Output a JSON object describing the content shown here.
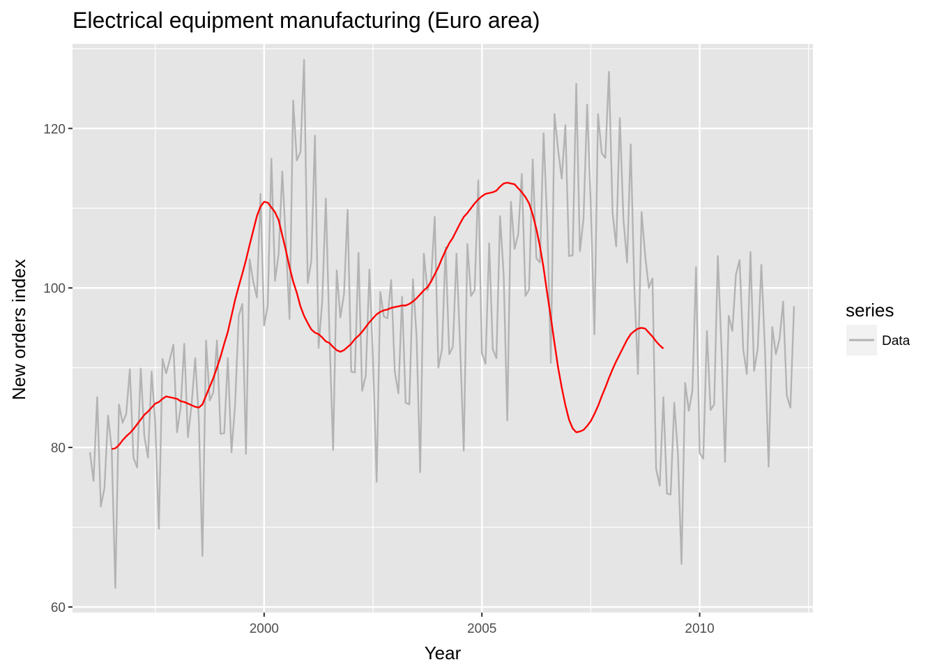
{
  "chart_data": {
    "type": "line",
    "title": "Electrical equipment manufacturing (Euro area)",
    "xlabel": "Year",
    "ylabel": "New orders index",
    "xlim": [
      1995.6,
      2012.6
    ],
    "ylim": [
      59.3,
      130.6
    ],
    "x_ticks": [
      2000,
      2005,
      2010
    ],
    "x_tick_labels": [
      "2000",
      "2005",
      "2010"
    ],
    "y_ticks": [
      60,
      80,
      100,
      120
    ],
    "y_tick_labels": [
      "60",
      "80",
      "100",
      "120"
    ],
    "grid": true,
    "legend": {
      "title": "series",
      "position": "right",
      "entries": [
        {
          "label": "Data",
          "color": "#b3b3b3"
        }
      ]
    },
    "colors": {
      "data": "#b3b3b3",
      "trend": "#ff0000",
      "panel": "#e5e5e5",
      "grid": "#ffffff"
    },
    "series": [
      {
        "name": "Data",
        "role": "data",
        "start": [
          1996,
          1
        ],
        "frequency": 12,
        "values": [
          79.4,
          75.8,
          86.3,
          72.6,
          74.9,
          84.0,
          79.8,
          62.4,
          85.4,
          83.1,
          84.2,
          89.8,
          78.7,
          77.5,
          89.9,
          81.4,
          78.7,
          89.5,
          83.0,
          69.8,
          91.1,
          89.3,
          91.0,
          92.9,
          81.9,
          85.0,
          93.0,
          81.3,
          85.3,
          91.2,
          83.6,
          66.4,
          93.4,
          85.9,
          86.9,
          93.4,
          81.7,
          81.8,
          91.2,
          79.4,
          85.4,
          96.5,
          98.0,
          79.2,
          103.6,
          100.8,
          98.8,
          111.8,
          95.3,
          97.8,
          116.2,
          100.9,
          104.3,
          114.6,
          105.7,
          96.1,
          123.5,
          116.0,
          117.0,
          128.6,
          100.6,
          103.4,
          119.1,
          92.5,
          98.3,
          111.2,
          94.1,
          79.7,
          102.2,
          96.3,
          99.2,
          109.8,
          89.5,
          89.4,
          104.4,
          87.1,
          89.0,
          102.3,
          90.9,
          75.7,
          99.5,
          96.4,
          96.2,
          101.0,
          89.5,
          86.8,
          98.9,
          85.6,
          85.4,
          101.1,
          93.9,
          76.9,
          104.3,
          99.7,
          101.0,
          108.9,
          90.0,
          92.3,
          105.1,
          91.7,
          92.6,
          104.3,
          92.7,
          79.6,
          105.5,
          99.0,
          99.7,
          113.5,
          91.8,
          90.5,
          105.6,
          92.3,
          91.2,
          109.0,
          101.6,
          83.4,
          110.8,
          104.9,
          106.7,
          114.3,
          99.0,
          99.8,
          116.1,
          103.7,
          103.2,
          119.4,
          108.1,
          90.6,
          121.8,
          117.3,
          113.7,
          120.4,
          104.0,
          104.1,
          125.6,
          104.6,
          108.7,
          123.0,
          110.3,
          94.2,
          121.8,
          116.9,
          116.3,
          127.1,
          109.4,
          105.2,
          121.3,
          108.6,
          103.2,
          118.0,
          100.1,
          89.2,
          109.5,
          104.0,
          100.0,
          101.2,
          77.3,
          75.2,
          86.3,
          74.2,
          74.1,
          85.6,
          79.3,
          65.4,
          88.1,
          84.6,
          87.1,
          102.6,
          79.3,
          78.6,
          94.6,
          84.7,
          85.4,
          104.0,
          92.6,
          78.2,
          96.5,
          94.6,
          101.7,
          103.5,
          92.3,
          89.2,
          104.5,
          89.6,
          92.4,
          102.9,
          92.2,
          77.6,
          95.1,
          91.7,
          93.6,
          98.3,
          86.5,
          85.0,
          97.7
        ]
      },
      {
        "name": "",
        "role": "trend",
        "start": [
          1996,
          7
        ],
        "frequency": 12,
        "values": [
          79.8,
          79.9,
          80.3,
          80.9,
          81.4,
          81.8,
          82.3,
          82.9,
          83.5,
          84.1,
          84.5,
          85.0,
          85.5,
          85.7,
          86.1,
          86.4,
          86.3,
          86.2,
          86.1,
          85.8,
          85.7,
          85.5,
          85.3,
          85.1,
          85.0,
          85.4,
          86.5,
          87.6,
          88.7,
          90.0,
          91.4,
          93.0,
          94.5,
          96.5,
          98.5,
          100.2,
          101.8,
          103.5,
          105.4,
          107.2,
          109.0,
          110.2,
          110.8,
          110.7,
          110.1,
          109.5,
          108.5,
          106.6,
          104.7,
          102.6,
          100.8,
          99.4,
          97.7,
          96.5,
          95.6,
          94.8,
          94.4,
          94.2,
          93.8,
          93.3,
          93.1,
          92.6,
          92.2,
          92.0,
          92.2,
          92.6,
          93.0,
          93.6,
          94.0,
          94.5,
          95.1,
          95.7,
          96.2,
          96.7,
          97.0,
          97.2,
          97.3,
          97.5,
          97.6,
          97.7,
          97.8,
          97.8,
          98.0,
          98.3,
          98.7,
          99.2,
          99.7,
          100.1,
          100.8,
          101.7,
          102.6,
          103.7,
          104.7,
          105.6,
          106.3,
          107.2,
          108.1,
          108.9,
          109.4,
          110.0,
          110.6,
          111.1,
          111.5,
          111.8,
          111.9,
          112.0,
          112.2,
          112.7,
          113.1,
          113.2,
          113.1,
          113.0,
          112.5,
          112.0,
          111.4,
          110.6,
          109.2,
          107.4,
          105.2,
          102.5,
          99.3,
          96.3,
          93.1,
          90.0,
          87.5,
          85.3,
          83.5,
          82.4,
          81.9,
          82.0,
          82.2,
          82.7,
          83.3,
          84.2,
          85.2,
          86.4,
          87.5,
          88.7,
          89.8,
          90.8,
          91.7,
          92.6,
          93.5,
          94.2,
          94.6,
          94.9,
          95.0,
          94.9,
          94.4,
          93.9,
          93.3,
          92.8,
          92.4
        ]
      }
    ]
  }
}
